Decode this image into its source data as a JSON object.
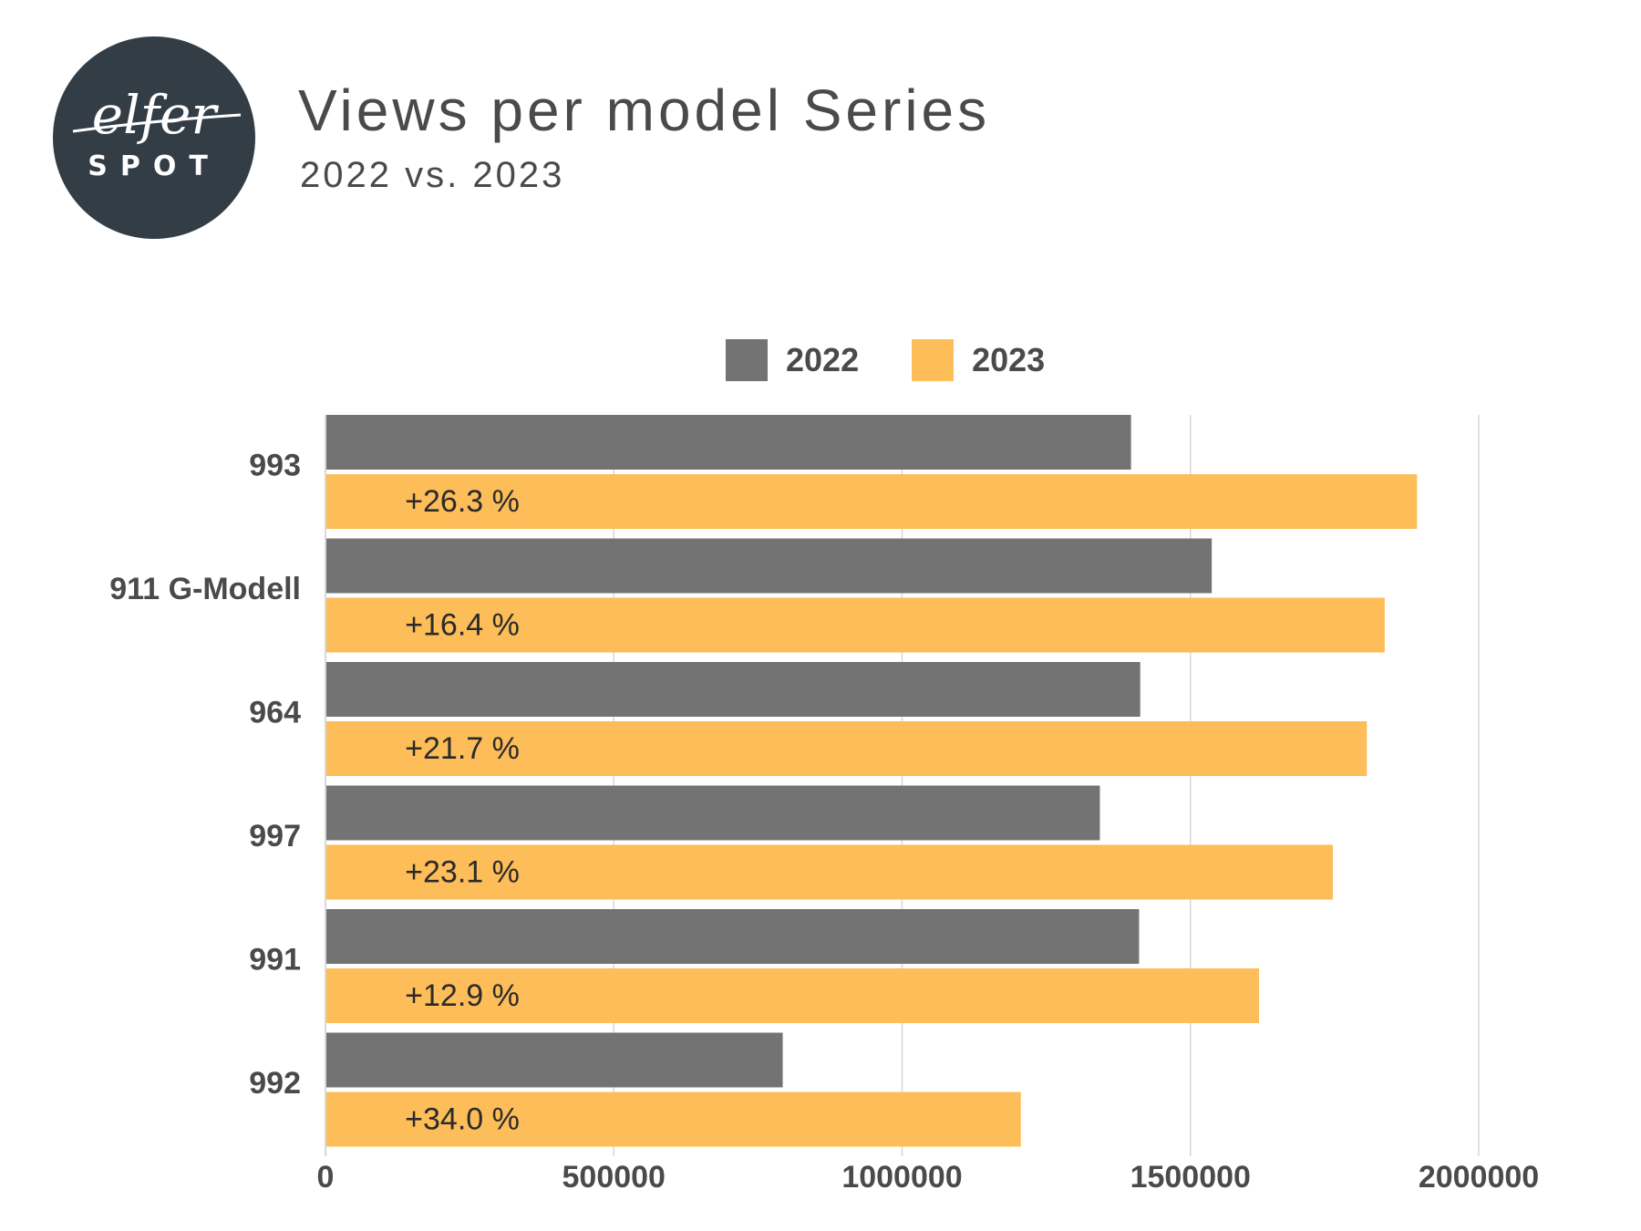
{
  "header": {
    "title": "Views per model Series",
    "subtitle": "2022 vs. 2023",
    "logo_text_top": "elfer",
    "logo_text_bottom": "SPOT"
  },
  "colors": {
    "series_2022": "#737373",
    "series_2023": "#fdbd58",
    "text": "#4a4a4a",
    "grid": "#d8d8d8",
    "logo_bg": "#333d46",
    "logo_fg": "#ffffff"
  },
  "chart_data": {
    "type": "bar",
    "orientation": "horizontal",
    "title": "Views per model Series",
    "subtitle": "2022 vs. 2023",
    "categories": [
      "993",
      "911 G-Modell",
      "964",
      "997",
      "991",
      "992"
    ],
    "series": [
      {
        "name": "2022",
        "values": [
          1397000,
          1537000,
          1413000,
          1343000,
          1411000,
          793000
        ]
      },
      {
        "name": "2023",
        "values": [
          1893000,
          1837000,
          1806000,
          1747000,
          1619000,
          1206000
        ]
      }
    ],
    "data_labels": [
      "+26.3 %",
      "+16.4 %",
      "+21.7 %",
      "+23.1 %",
      "+12.9 %",
      "+34.0 %"
    ],
    "x_ticks": [
      "0",
      "500000",
      "1000000",
      "1500000",
      "2000000"
    ],
    "xlim": [
      0,
      2000000
    ],
    "grid": true,
    "legend_position": "top-center"
  }
}
